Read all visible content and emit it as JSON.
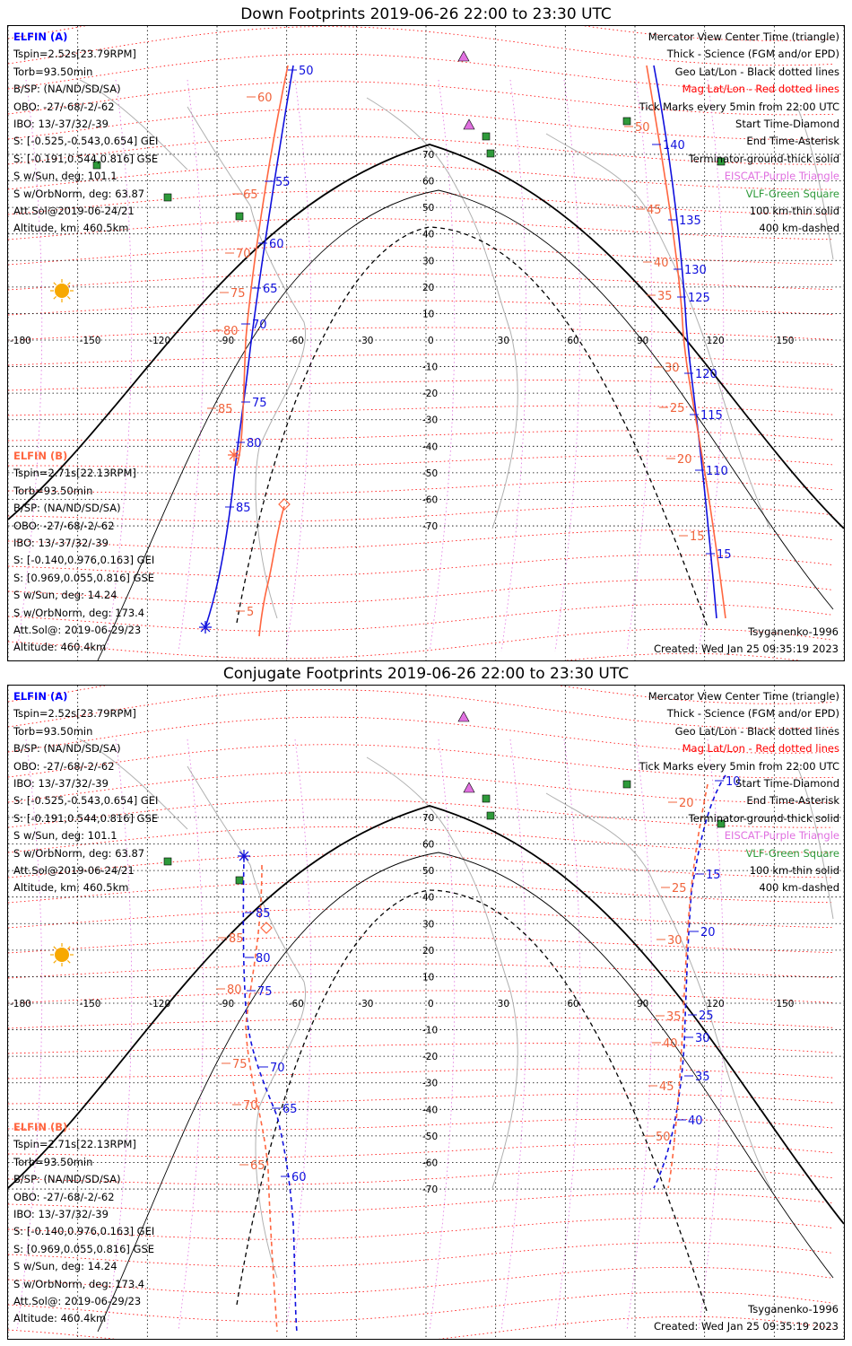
{
  "colors": {
    "elfin_a": "#0000ff",
    "elfin_b": "#ff6640",
    "mag_grid": "#ff0000",
    "geo_grid": "#000000",
    "eiscat": "#e070e0",
    "vlf": "#2e9a3a",
    "coast": "#b0b0b0",
    "terminator": "#000000"
  },
  "panels": [
    {
      "title": "Down Footprints 2019-06-26 22:00 to 23:30 UTC",
      "elfin_a": {
        "header": "ELFIN (A)",
        "lines": [
          "Tspin=2.52s[23.79RPM]",
          "Torb=93.50min",
          "B/SP: (NA/ND/SD/SA)",
          "OBO: -27/-68/-2/-62",
          "IBO: 13/-37/32/-39",
          "S: [-0.525,-0.543,0.654] GEI",
          "S: [-0.191,0.544,0.816] GSE",
          "S w/Sun, deg: 101.1",
          "S w/OrbNorm, deg: 63.87",
          "Att.Sol@2019-06-24/21",
          "Altitude, km: 460.5km"
        ]
      },
      "elfin_b": {
        "header": "ELFIN (B)",
        "lines": [
          "Tspin=2.71s[22.13RPM]",
          "Torb=93.50min",
          "B/SP: (NA/ND/SD/SA)",
          "OBO: -27/-68/-2/-62",
          "IBO: 13/-37/32/-39",
          "S: [-0.140,0.976,0.163] GEI",
          "S: [0.969,0.055,0.816] GSE",
          "S w/Sun, deg: 14.24",
          "S w/OrbNorm, deg: 173.4",
          "Att.Sol@: 2019-06-29/23",
          "Altitude: 460.4km"
        ]
      },
      "legend": [
        {
          "text": "Mercator View Center Time (triangle)",
          "color": "#000000"
        },
        {
          "text": "Thick - Science (FGM and/or EPD)",
          "color": "#000000"
        },
        {
          "text": "Geo Lat/Lon - Black dotted lines",
          "color": "#000000"
        },
        {
          "text": "Mag Lat/Lon - Red dotted lines",
          "color": "#ff0000"
        },
        {
          "text": "Tick Marks every 5min from 22:00 UTC",
          "color": "#000000"
        },
        {
          "text": "Start Time-Diamond",
          "color": "#000000"
        },
        {
          "text": "End Time-Asterisk",
          "color": "#000000"
        },
        {
          "text": "Terminator-ground-thick solid",
          "color": "#000000"
        },
        {
          "text": "EISCAT-Purple Triangle",
          "color": "#e070e0"
        },
        {
          "text": "VLF-Green Square",
          "color": "#2e9a3a"
        },
        {
          "text": "100 km-thin solid",
          "color": "#000000"
        },
        {
          "text": "400 km-dashed",
          "color": "#000000"
        }
      ],
      "model": "Tsyganenko-1996",
      "created": "Created: Wed Jan 25 09:35:19 2023",
      "lon_labels": [
        "-180",
        "-150",
        "-120",
        "-90",
        "-60",
        "-30",
        "0",
        "30",
        "60",
        "90",
        "120",
        "150",
        "180"
      ],
      "lat_labels": [
        "70",
        "60",
        "50",
        "40",
        "30",
        "20",
        "10",
        "0",
        "-10",
        "-20",
        "-30",
        "-40",
        "-50",
        "-60",
        "-70"
      ],
      "ticks_a_left": [
        "50",
        "55",
        "60",
        "65",
        "70",
        "75",
        "80",
        "85"
      ],
      "ticks_b_left": [
        "60",
        "65",
        "70",
        "75",
        "80",
        "85",
        "5"
      ],
      "ticks_a_right": [
        "140",
        "135",
        "130",
        "125",
        "120",
        "115",
        "110",
        "15"
      ],
      "ticks_b_right": [
        "50",
        "45",
        "40",
        "35",
        "30",
        "25",
        "20",
        "15"
      ]
    },
    {
      "title": "Conjugate Footprints 2019-06-26 22:00 to 23:30 UTC",
      "elfin_a": {
        "header": "ELFIN (A)",
        "lines": [
          "Tspin=2.52s[23.79RPM]",
          "Torb=93.50min",
          "B/SP: (NA/ND/SD/SA)",
          "OBO: -27/-68/-2/-62",
          "IBO: 13/-37/32/-39",
          "S: [-0.525,-0.543,0.654] GEI",
          "S: [-0.191,0.544,0.816] GSE",
          "S w/Sun, deg: 101.1",
          "S w/OrbNorm, deg: 63.87",
          "Att.Sol@2019-06-24/21",
          "Altitude, km: 460.5km"
        ]
      },
      "elfin_b": {
        "header": "ELFIN (B)",
        "lines": [
          "Tspin=2.71s[22.13RPM]",
          "Torb=93.50min",
          "B/SP: (NA/ND/SD/SA)",
          "OBO: -27/-68/-2/-62",
          "IBO: 13/-37/32/-39",
          "S: [-0.140,0.976,0.163] GEI",
          "S: [0.969,0.055,0.816] GSE",
          "S w/Sun, deg: 14.24",
          "S w/OrbNorm, deg: 173.4",
          "Att.Sol@: 2019-06-29/23",
          "Altitude: 460.4km"
        ]
      },
      "legend": [
        {
          "text": "Mercator View Center Time (triangle)",
          "color": "#000000"
        },
        {
          "text": "Thick - Science (FGM and/or EPD)",
          "color": "#000000"
        },
        {
          "text": "Geo Lat/Lon - Black dotted lines",
          "color": "#000000"
        },
        {
          "text": "Mag Lat/Lon - Red dotted lines",
          "color": "#ff0000"
        },
        {
          "text": "Tick Marks every 5min from 22:00 UTC",
          "color": "#000000"
        },
        {
          "text": "Start Time-Diamond",
          "color": "#000000"
        },
        {
          "text": "End Time-Asterisk",
          "color": "#000000"
        },
        {
          "text": "Terminator-ground-thick solid",
          "color": "#000000"
        },
        {
          "text": "EISCAT-Purple Triangle",
          "color": "#e070e0"
        },
        {
          "text": "VLF-Green Square",
          "color": "#2e9a3a"
        },
        {
          "text": "100 km-thin solid",
          "color": "#000000"
        },
        {
          "text": "400 km-dashed",
          "color": "#000000"
        }
      ],
      "model": "Tsyganenko-1996",
      "created": "Created: Wed Jan 25 09:35:19 2023",
      "lon_labels": [
        "-180",
        "-150",
        "-120",
        "-90",
        "-60",
        "-30",
        "0",
        "30",
        "60",
        "90",
        "120",
        "150",
        "180"
      ],
      "lat_labels": [
        "70",
        "60",
        "50",
        "40",
        "30",
        "20",
        "10",
        "0",
        "-10",
        "-20",
        "-30",
        "-40",
        "-50",
        "-60",
        "-70"
      ],
      "ticks_a_left": [
        "85",
        "80",
        "75",
        "70",
        "65",
        "60"
      ],
      "ticks_b_left": [
        "85",
        "80",
        "75",
        "70",
        "65"
      ],
      "ticks_a_right": [
        "10",
        "15",
        "20",
        "25",
        "30",
        "35",
        "40"
      ],
      "ticks_b_right": [
        "20",
        "25",
        "30",
        "35",
        "40",
        "45",
        "50"
      ]
    }
  ]
}
